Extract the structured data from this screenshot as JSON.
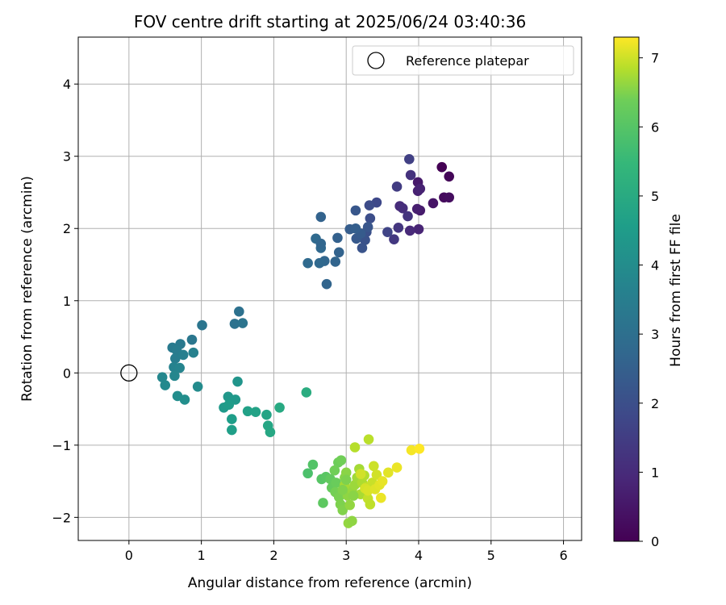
{
  "chart_data": {
    "type": "scatter",
    "title": "FOV centre drift starting at 2025/06/24 03:40:36",
    "xlabel": "Angular distance from reference (arcmin)",
    "ylabel": "Rotation from reference (arcmin)",
    "xlim": [
      -0.7,
      6.25
    ],
    "ylim": [
      -2.32,
      4.65
    ],
    "x_ticks": [
      0,
      1,
      2,
      3,
      4,
      5,
      6
    ],
    "y_ticks": [
      -2,
      -1,
      0,
      1,
      2,
      3,
      4
    ],
    "x_tick_labels": [
      "0",
      "1",
      "2",
      "3",
      "4",
      "5",
      "6"
    ],
    "y_tick_labels": [
      "−2",
      "−1",
      "0",
      "1",
      "2",
      "3",
      "4"
    ],
    "grid": true,
    "legend": {
      "position": "top-right",
      "label": "Reference platepar"
    },
    "reference": {
      "x": 0,
      "y": 0,
      "marker": "open-circle"
    },
    "colorbar": {
      "label": "Hours from first FF file",
      "min": 0,
      "max": 7.3,
      "ticks": [
        0,
        1,
        2,
        3,
        4,
        5,
        6,
        7
      ],
      "tick_labels": [
        "0",
        "1",
        "2",
        "3",
        "4",
        "5",
        "6",
        "7"
      ],
      "colormap": "viridis"
    },
    "series": [
      {
        "values": [
          {
            "x": 4.32,
            "y": 2.85,
            "c": 0.0
          },
          {
            "x": 4.42,
            "y": 2.72,
            "c": 0.1
          },
          {
            "x": 4.35,
            "y": 2.43,
            "c": 0.2
          },
          {
            "x": 4.42,
            "y": 2.43,
            "c": 0.25
          },
          {
            "x": 4.2,
            "y": 2.35,
            "c": 0.4
          },
          {
            "x": 3.99,
            "y": 2.64,
            "c": 0.5
          },
          {
            "x": 4.02,
            "y": 2.25,
            "c": 0.55
          },
          {
            "x": 3.98,
            "y": 2.27,
            "c": 0.6
          },
          {
            "x": 3.99,
            "y": 2.52,
            "c": 0.65
          },
          {
            "x": 4.02,
            "y": 2.55,
            "c": 0.7
          },
          {
            "x": 4.0,
            "y": 1.99,
            "c": 0.75
          },
          {
            "x": 3.88,
            "y": 1.97,
            "c": 0.85
          },
          {
            "x": 3.74,
            "y": 2.31,
            "c": 0.9
          },
          {
            "x": 3.78,
            "y": 2.28,
            "c": 0.95
          },
          {
            "x": 3.89,
            "y": 2.74,
            "c": 1.05
          },
          {
            "x": 3.85,
            "y": 2.17,
            "c": 1.1
          },
          {
            "x": 3.72,
            "y": 2.01,
            "c": 1.15
          },
          {
            "x": 3.66,
            "y": 1.85,
            "c": 1.2
          },
          {
            "x": 3.7,
            "y": 2.58,
            "c": 1.3
          },
          {
            "x": 3.87,
            "y": 2.96,
            "c": 1.4
          },
          {
            "x": 3.57,
            "y": 1.95,
            "c": 1.5
          },
          {
            "x": 3.42,
            "y": 2.36,
            "c": 1.6
          },
          {
            "x": 3.32,
            "y": 2.32,
            "c": 1.7
          },
          {
            "x": 3.33,
            "y": 2.14,
            "c": 1.75
          },
          {
            "x": 3.28,
            "y": 1.95,
            "c": 1.8
          },
          {
            "x": 3.26,
            "y": 1.84,
            "c": 1.85
          },
          {
            "x": 3.22,
            "y": 1.73,
            "c": 1.9
          },
          {
            "x": 3.3,
            "y": 2.02,
            "c": 1.95
          },
          {
            "x": 3.13,
            "y": 2.25,
            "c": 2.0
          },
          {
            "x": 3.14,
            "y": 1.86,
            "c": 2.05
          },
          {
            "x": 3.2,
            "y": 1.93,
            "c": 2.1
          },
          {
            "x": 3.05,
            "y": 1.99,
            "c": 2.15
          },
          {
            "x": 3.13,
            "y": 2.0,
            "c": 2.2
          },
          {
            "x": 2.88,
            "y": 1.87,
            "c": 2.25
          },
          {
            "x": 2.9,
            "y": 1.67,
            "c": 2.3
          },
          {
            "x": 2.85,
            "y": 1.54,
            "c": 2.35
          },
          {
            "x": 2.7,
            "y": 1.55,
            "c": 2.4
          },
          {
            "x": 2.63,
            "y": 1.52,
            "c": 2.45
          },
          {
            "x": 2.47,
            "y": 1.52,
            "c": 2.5
          },
          {
            "x": 2.58,
            "y": 1.86,
            "c": 2.5
          },
          {
            "x": 2.65,
            "y": 1.73,
            "c": 2.45
          },
          {
            "x": 2.65,
            "y": 1.79,
            "c": 2.4
          },
          {
            "x": 2.73,
            "y": 1.23,
            "c": 2.35
          },
          {
            "x": 2.65,
            "y": 2.16,
            "c": 2.3
          },
          {
            "x": 1.52,
            "y": 0.85,
            "c": 2.7
          },
          {
            "x": 1.46,
            "y": 0.68,
            "c": 2.75
          },
          {
            "x": 1.57,
            "y": 0.69,
            "c": 2.8
          },
          {
            "x": 1.01,
            "y": 0.66,
            "c": 2.85
          },
          {
            "x": 0.87,
            "y": 0.46,
            "c": 2.9
          },
          {
            "x": 0.71,
            "y": 0.4,
            "c": 2.95
          },
          {
            "x": 0.6,
            "y": 0.35,
            "c": 3.0
          },
          {
            "x": 0.66,
            "y": 0.31,
            "c": 3.05
          },
          {
            "x": 0.64,
            "y": 0.2,
            "c": 3.1
          },
          {
            "x": 0.75,
            "y": 0.25,
            "c": 3.15
          },
          {
            "x": 0.89,
            "y": 0.28,
            "c": 3.2
          },
          {
            "x": 0.62,
            "y": 0.08,
            "c": 3.25
          },
          {
            "x": 0.7,
            "y": 0.07,
            "c": 3.3
          },
          {
            "x": 0.63,
            "y": -0.04,
            "c": 3.35
          },
          {
            "x": 0.46,
            "y": -0.06,
            "c": 3.4
          },
          {
            "x": 0.5,
            "y": -0.17,
            "c": 3.45
          },
          {
            "x": 0.95,
            "y": -0.19,
            "c": 3.5
          },
          {
            "x": 0.67,
            "y": -0.32,
            "c": 3.55
          },
          {
            "x": 0.77,
            "y": -0.37,
            "c": 3.6
          },
          {
            "x": 1.5,
            "y": -0.12,
            "c": 3.8
          },
          {
            "x": 1.37,
            "y": -0.33,
            "c": 3.85
          },
          {
            "x": 1.47,
            "y": -0.37,
            "c": 3.9
          },
          {
            "x": 1.31,
            "y": -0.48,
            "c": 3.95
          },
          {
            "x": 1.38,
            "y": -0.44,
            "c": 4.0
          },
          {
            "x": 1.42,
            "y": -0.64,
            "c": 4.05
          },
          {
            "x": 1.42,
            "y": -0.79,
            "c": 4.1
          },
          {
            "x": 1.64,
            "y": -0.53,
            "c": 4.15
          },
          {
            "x": 1.75,
            "y": -0.54,
            "c": 4.2
          },
          {
            "x": 1.9,
            "y": -0.58,
            "c": 4.25
          },
          {
            "x": 1.92,
            "y": -0.73,
            "c": 4.3
          },
          {
            "x": 1.95,
            "y": -0.82,
            "c": 4.35
          },
          {
            "x": 2.08,
            "y": -0.48,
            "c": 4.4
          },
          {
            "x": 2.45,
            "y": -0.27,
            "c": 4.5
          },
          {
            "x": 2.47,
            "y": -1.39,
            "c": 5.2
          },
          {
            "x": 2.54,
            "y": -1.27,
            "c": 5.3
          },
          {
            "x": 2.66,
            "y": -1.47,
            "c": 5.35
          },
          {
            "x": 2.72,
            "y": -1.44,
            "c": 5.4
          },
          {
            "x": 2.68,
            "y": -1.8,
            "c": 5.45
          },
          {
            "x": 2.78,
            "y": -1.47,
            "c": 5.5
          },
          {
            "x": 2.8,
            "y": -1.59,
            "c": 5.55
          },
          {
            "x": 2.86,
            "y": -1.52,
            "c": 5.6
          },
          {
            "x": 2.89,
            "y": -1.24,
            "c": 5.65
          },
          {
            "x": 2.93,
            "y": -1.21,
            "c": 5.7
          },
          {
            "x": 2.85,
            "y": -1.65,
            "c": 5.75
          },
          {
            "x": 2.9,
            "y": -1.72,
            "c": 5.8
          },
          {
            "x": 2.92,
            "y": -1.82,
            "c": 5.85
          },
          {
            "x": 2.95,
            "y": -1.9,
            "c": 5.9
          },
          {
            "x": 2.98,
            "y": -1.45,
            "c": 5.95
          },
          {
            "x": 3.0,
            "y": -1.38,
            "c": 6.0
          },
          {
            "x": 3.02,
            "y": -1.7,
            "c": 6.05
          },
          {
            "x": 3.05,
            "y": -1.83,
            "c": 6.1
          },
          {
            "x": 3.08,
            "y": -1.62,
            "c": 6.15
          },
          {
            "x": 3.03,
            "y": -2.08,
            "c": 6.1
          },
          {
            "x": 3.08,
            "y": -2.05,
            "c": 6.05
          },
          {
            "x": 3.12,
            "y": -1.55,
            "c": 6.2
          },
          {
            "x": 3.15,
            "y": -1.45,
            "c": 6.25
          },
          {
            "x": 3.18,
            "y": -1.33,
            "c": 6.3
          },
          {
            "x": 3.2,
            "y": -1.68,
            "c": 6.35
          },
          {
            "x": 3.22,
            "y": -1.52,
            "c": 6.4
          },
          {
            "x": 3.25,
            "y": -1.42,
            "c": 6.45
          },
          {
            "x": 3.12,
            "y": -1.03,
            "c": 6.5
          },
          {
            "x": 3.31,
            "y": -0.92,
            "c": 6.55
          },
          {
            "x": 3.28,
            "y": -1.58,
            "c": 6.6
          },
          {
            "x": 3.3,
            "y": -1.74,
            "c": 6.65
          },
          {
            "x": 3.33,
            "y": -1.82,
            "c": 6.6
          },
          {
            "x": 3.36,
            "y": -1.52,
            "c": 6.7
          },
          {
            "x": 3.38,
            "y": -1.29,
            "c": 6.75
          },
          {
            "x": 3.42,
            "y": -1.41,
            "c": 6.8
          },
          {
            "x": 3.26,
            "y": -1.6,
            "c": 6.85
          },
          {
            "x": 3.3,
            "y": -1.63,
            "c": 6.9
          },
          {
            "x": 3.4,
            "y": -1.61,
            "c": 6.95
          },
          {
            "x": 3.46,
            "y": -1.55,
            "c": 7.0
          },
          {
            "x": 3.5,
            "y": -1.5,
            "c": 7.05
          },
          {
            "x": 3.48,
            "y": -1.73,
            "c": 7.1
          },
          {
            "x": 3.58,
            "y": -1.38,
            "c": 7.0
          },
          {
            "x": 3.7,
            "y": -1.31,
            "c": 7.1
          },
          {
            "x": 3.9,
            "y": -1.07,
            "c": 7.2
          },
          {
            "x": 4.01,
            "y": -1.05,
            "c": 7.3
          },
          {
            "x": 3.2,
            "y": -1.4,
            "c": 6.8
          },
          {
            "x": 2.98,
            "y": -1.55,
            "c": 6.3
          },
          {
            "x": 2.95,
            "y": -1.62,
            "c": 5.9
          },
          {
            "x": 3.1,
            "y": -1.7,
            "c": 6.0
          },
          {
            "x": 3.0,
            "y": -1.48,
            "c": 5.85
          },
          {
            "x": 2.84,
            "y": -1.35,
            "c": 5.7
          }
        ]
      }
    ]
  }
}
